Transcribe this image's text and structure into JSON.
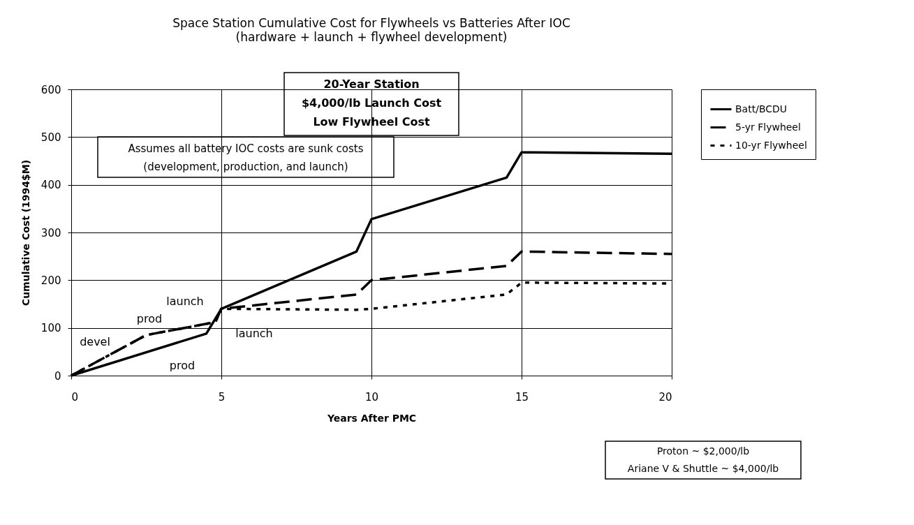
{
  "chart_data": {
    "type": "line",
    "title": "Space Station Cumulative Cost for Flywheels vs Batteries After IOC",
    "subtitle": "(hardware + launch + flywheel development)",
    "xlabel": "Years After PMC",
    "ylabel": "Cumulative Cost (1994$M)",
    "series": [
      {
        "name": "Batt/BCDU",
        "color": "#000000",
        "line_style": "solid",
        "x": [
          0,
          4.5,
          5,
          9.5,
          10,
          14.5,
          15,
          20
        ],
        "values": [
          0,
          88,
          140,
          260,
          328,
          415,
          468,
          465
        ]
      },
      {
        "name": "5-yr Flywheel",
        "color": "#000000",
        "line_style": "dashed",
        "x": [
          0,
          2.5,
          4.8,
          5,
          9.5,
          10,
          14.5,
          15,
          20
        ],
        "values": [
          0,
          85,
          112,
          140,
          170,
          200,
          230,
          260,
          255
        ]
      },
      {
        "name": "10-yr Flywheel",
        "color": "#000000",
        "line_style": "dotted",
        "x": [
          0,
          2.5,
          4.8,
          5,
          9.5,
          10,
          14.5,
          15,
          20
        ],
        "values": [
          0,
          85,
          112,
          140,
          138,
          140,
          170,
          195,
          193
        ]
      }
    ],
    "xlim": [
      0,
      20
    ],
    "xticks": [
      0,
      5,
      10,
      15,
      20
    ],
    "ylim": [
      0,
      600
    ],
    "yticks": [
      0,
      100,
      200,
      300,
      400,
      500,
      600
    ],
    "grid": true,
    "legend": "right",
    "marker": "none",
    "annotations": [
      "20-Year Station\n$4,000/lb Launch Cost\nLow Flywheel Cost",
      "Assumes all battery IOC costs are sunk costs\n(development, production, and launch)",
      "Proton ~ $2,000/lb\nAriane V & Shuttle ~ $4,000/lb",
      "devel",
      "prod",
      "launch",
      "launch",
      "prod"
    ]
  }
}
